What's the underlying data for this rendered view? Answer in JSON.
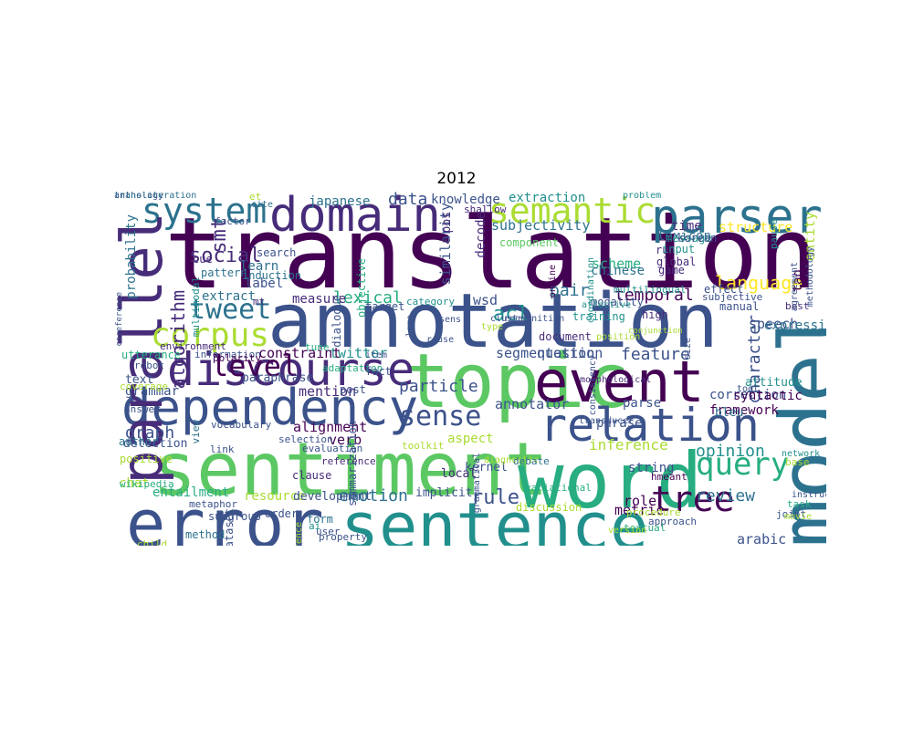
{
  "title": "2012",
  "palette": {
    "c1": "#440154",
    "c2": "#472c7a",
    "c3": "#3b528b",
    "c4": "#2c728e",
    "c5": "#21908d",
    "c6": "#27ad81",
    "c7": "#5cc863",
    "c8": "#aadc32",
    "c9": "#fde725"
  },
  "words": [
    {
      "t": "translation",
      "c": "c1"
    },
    {
      "t": "annotation",
      "c": "c3"
    },
    {
      "t": "model",
      "c": "c4"
    },
    {
      "t": "sentiment",
      "c": "c7"
    },
    {
      "t": "word",
      "c": "c6"
    },
    {
      "t": "error",
      "c": "c3"
    },
    {
      "t": "sentence",
      "c": "c5"
    },
    {
      "t": "topic",
      "c": "c7"
    },
    {
      "t": "dependency",
      "c": "c3"
    },
    {
      "t": "relation",
      "c": "c3"
    },
    {
      "t": "discourse",
      "c": "c2"
    },
    {
      "t": "event",
      "c": "c1"
    },
    {
      "t": "parser",
      "c": "c4"
    },
    {
      "t": "domain",
      "c": "c2"
    },
    {
      "t": "semantic",
      "c": "c8"
    },
    {
      "t": "system",
      "c": "c4"
    },
    {
      "t": "parallel",
      "c": "c2"
    },
    {
      "t": "corpus",
      "c": "c8"
    },
    {
      "t": "tweet",
      "c": "c4"
    },
    {
      "t": "query",
      "c": "c6"
    },
    {
      "t": "tree",
      "c": "c1"
    },
    {
      "t": "level",
      "c": "c1"
    },
    {
      "t": "sense",
      "c": "c3"
    },
    {
      "t": "algorithm",
      "c": "c2"
    },
    {
      "t": "language",
      "c": "c9"
    },
    {
      "t": "social",
      "c": "c2"
    },
    {
      "t": "smt",
      "c": "c2"
    },
    {
      "t": "temporal",
      "c": "c1"
    },
    {
      "t": "review",
      "c": "c4"
    },
    {
      "t": "rule",
      "c": "c3"
    },
    {
      "t": "feature",
      "c": "c3"
    },
    {
      "t": "alignment",
      "c": "c1"
    },
    {
      "t": "emotion",
      "c": "c4"
    },
    {
      "t": "opinion",
      "c": "c5"
    },
    {
      "t": "graph",
      "c": "c3"
    },
    {
      "t": "lexical",
      "c": "c6"
    },
    {
      "t": "particle",
      "c": "c3"
    },
    {
      "t": "annotator",
      "c": "c3"
    },
    {
      "t": "character",
      "c": "c3"
    },
    {
      "t": "similarity",
      "c": "c3"
    },
    {
      "t": "inference",
      "c": "c8"
    },
    {
      "t": "acl",
      "c": "c5"
    },
    {
      "t": "pair",
      "c": "c4"
    },
    {
      "t": "data",
      "c": "c3"
    },
    {
      "t": "entity",
      "c": "c8"
    },
    {
      "t": "speech",
      "c": "c3"
    },
    {
      "t": "segmentation",
      "c": "c3"
    },
    {
      "t": "question",
      "c": "c3"
    },
    {
      "t": "verb",
      "c": "c1"
    },
    {
      "t": "arabic",
      "c": "c3"
    },
    {
      "t": "metric",
      "c": "c1"
    },
    {
      "t": "role",
      "c": "c1"
    },
    {
      "t": "wsd",
      "c": "c3"
    },
    {
      "t": "subjectivity",
      "c": "c4"
    },
    {
      "t": "structure",
      "c": "c9"
    },
    {
      "t": "scheme",
      "c": "c6"
    },
    {
      "t": "treebank",
      "c": "c6"
    },
    {
      "t": "string",
      "c": "c3"
    },
    {
      "t": "aspect",
      "c": "c8"
    },
    {
      "t": "label",
      "c": "c3"
    },
    {
      "t": "japanese",
      "c": "c4"
    },
    {
      "t": "knowledge",
      "c": "c3"
    },
    {
      "t": "extraction",
      "c": "c5"
    },
    {
      "t": "mention",
      "c": "c2"
    },
    {
      "t": "twitter",
      "c": "c5"
    },
    {
      "t": "constraint",
      "c": "c1"
    },
    {
      "t": "extract",
      "c": "c4"
    },
    {
      "t": "measure",
      "c": "c2"
    },
    {
      "t": "learn",
      "c": "c4"
    },
    {
      "t": "probability",
      "c": "c4"
    },
    {
      "t": "framework",
      "c": "c1"
    },
    {
      "t": "correction",
      "c": "c3"
    },
    {
      "t": "parse",
      "c": "c3"
    },
    {
      "t": "phrase",
      "c": "c3"
    },
    {
      "t": "tag",
      "c": "c1"
    },
    {
      "t": "syntactic",
      "c": "c1"
    },
    {
      "t": "expression",
      "c": "c4"
    },
    {
      "t": "chinese",
      "c": "c4"
    },
    {
      "t": "lexicon",
      "c": "c4"
    },
    {
      "t": "time",
      "c": "c2"
    },
    {
      "t": "decode",
      "c": "c2"
    },
    {
      "t": "pos",
      "c": "c2"
    },
    {
      "t": "paraphrase",
      "c": "c3"
    },
    {
      "t": "grammar",
      "c": "c3"
    },
    {
      "t": "text",
      "c": "c3"
    },
    {
      "t": "detection",
      "c": "c3"
    },
    {
      "t": "chat",
      "c": "c8"
    },
    {
      "t": "entailment",
      "c": "c6"
    },
    {
      "t": "resource",
      "c": "c8"
    },
    {
      "t": "development",
      "c": "c3"
    },
    {
      "t": "implicit",
      "c": "c3"
    },
    {
      "t": "discussion",
      "c": "c8"
    },
    {
      "t": "kernel",
      "c": "c3"
    },
    {
      "t": "local",
      "c": "c2"
    },
    {
      "t": "bleu",
      "c": "c4"
    },
    {
      "t": "attitude",
      "c": "c5"
    },
    {
      "t": "modality",
      "c": "c3"
    },
    {
      "t": "training",
      "c": "c5"
    },
    {
      "t": "document",
      "c": "c2"
    },
    {
      "t": "high",
      "c": "c2"
    },
    {
      "t": "run",
      "c": "c2"
    },
    {
      "t": "global",
      "c": "c2"
    },
    {
      "t": "game",
      "c": "c2"
    },
    {
      "t": "input",
      "c": "c5"
    },
    {
      "t": "message",
      "c": "c5"
    },
    {
      "t": "search",
      "c": "c3"
    },
    {
      "t": "cue",
      "c": "c2"
    },
    {
      "t": "pattern",
      "c": "c4"
    },
    {
      "t": "induction",
      "c": "c4"
    },
    {
      "t": "mt",
      "c": "c2"
    },
    {
      "t": "category",
      "c": "c5"
    },
    {
      "t": "target",
      "c": "c3"
    },
    {
      "t": "dialogue",
      "c": "c3"
    },
    {
      "t": "objective",
      "c": "c6"
    },
    {
      "t": "component",
      "c": "c7"
    },
    {
      "t": "shallow",
      "c": "c2"
    },
    {
      "t": "problem",
      "c": "c5"
    },
    {
      "t": "korean",
      "c": "c3"
    },
    {
      "t": "et",
      "c": "c8"
    },
    {
      "t": "cite",
      "c": "c4"
    },
    {
      "t": "factor",
      "c": "c3"
    },
    {
      "t": "multimodal",
      "c": "c5"
    },
    {
      "t": "environment",
      "c": "c2"
    },
    {
      "t": "information",
      "c": "c3"
    },
    {
      "t": "polarity",
      "c": "c1"
    },
    {
      "t": "utterance",
      "c": "c6"
    },
    {
      "t": "robot",
      "c": "c3"
    },
    {
      "t": "coverage",
      "c": "c8"
    },
    {
      "t": "tune",
      "c": "c6"
    },
    {
      "t": "adaptation",
      "c": "c6"
    },
    {
      "t": "fact",
      "c": "c3"
    },
    {
      "t": "post",
      "c": "c3"
    },
    {
      "t": "answer",
      "c": "c3"
    },
    {
      "t": "author",
      "c": "c4"
    },
    {
      "t": "positive",
      "c": "c8"
    },
    {
      "t": "wikipedia",
      "c": "c6"
    },
    {
      "t": "vocabulary",
      "c": "c3"
    },
    {
      "t": "link",
      "c": "c3"
    },
    {
      "t": "selection",
      "c": "c3"
    },
    {
      "t": "evaluation",
      "c": "c3"
    },
    {
      "t": "reference",
      "c": "c2"
    },
    {
      "t": "clause",
      "c": "c2"
    },
    {
      "t": "metaphor",
      "c": "c3"
    },
    {
      "t": "subgroup",
      "c": "c3"
    },
    {
      "t": "method",
      "c": "c4"
    },
    {
      "t": "dataset",
      "c": "c3"
    },
    {
      "t": "order",
      "c": "c3"
    },
    {
      "t": "form",
      "c": "c4"
    },
    {
      "t": "ai",
      "c": "c5"
    },
    {
      "t": "user",
      "c": "c3"
    },
    {
      "t": "property",
      "c": "c3"
    },
    {
      "t": "preference",
      "c": "c8"
    },
    {
      "t": "child",
      "c": "c8"
    },
    {
      "t": "view",
      "c": "c4"
    },
    {
      "t": "toolkit",
      "c": "c8"
    },
    {
      "t": "summarization",
      "c": "c3"
    },
    {
      "t": "diagnostic",
      "c": "c8"
    },
    {
      "t": "grammatical",
      "c": "c3"
    },
    {
      "t": "debate",
      "c": "c4"
    },
    {
      "t": "variational",
      "c": "c6"
    },
    {
      "t": "procedure",
      "c": "c8"
    },
    {
      "t": "approach",
      "c": "c3"
    },
    {
      "t": "hmeant",
      "c": "c1"
    },
    {
      "t": "textual",
      "c": "c6"
    },
    {
      "t": "transducer",
      "c": "c3"
    },
    {
      "t": "consistency",
      "c": "c3"
    },
    {
      "t": "base",
      "c": "c8"
    },
    {
      "t": "network",
      "c": "c5"
    },
    {
      "t": "task",
      "c": "c6"
    },
    {
      "t": "instruction",
      "c": "c3"
    },
    {
      "t": "joint",
      "c": "c3"
    },
    {
      "t": "movie",
      "c": "c8"
    },
    {
      "t": "version",
      "c": "c8"
    },
    {
      "t": "effect",
      "c": "c3"
    },
    {
      "t": "manual",
      "c": "c3"
    },
    {
      "t": "subjective",
      "c": "c3"
    },
    {
      "t": "best",
      "c": "c2"
    },
    {
      "t": "tool",
      "c": "c3"
    },
    {
      "t": "size",
      "c": "c3"
    },
    {
      "t": "pause",
      "c": "c5"
    },
    {
      "t": "agreement",
      "c": "c3"
    },
    {
      "t": "methodology",
      "c": "c3"
    },
    {
      "t": "multilingual",
      "c": "c5"
    },
    {
      "t": "position",
      "c": "c8"
    },
    {
      "t": "coordination",
      "c": "c5"
    },
    {
      "t": "online",
      "c": "c1"
    },
    {
      "t": "affective",
      "c": "c5"
    },
    {
      "t": "conjunction",
      "c": "c8"
    },
    {
      "t": "morphological",
      "c": "c2"
    },
    {
      "t": "recognition",
      "c": "c3"
    },
    {
      "t": "reuse",
      "c": "c3"
    },
    {
      "t": "item",
      "c": "c3"
    },
    {
      "t": "sens",
      "c": "c3"
    },
    {
      "t": "type",
      "c": "c8"
    },
    {
      "t": "cluster",
      "c": "c3"
    },
    {
      "t": "lore",
      "c": "c3"
    },
    {
      "t": "coreference",
      "c": "c3"
    },
    {
      "t": "anthology",
      "c": "c3"
    },
    {
      "t": "transliteration",
      "c": "c4"
    }
  ]
}
